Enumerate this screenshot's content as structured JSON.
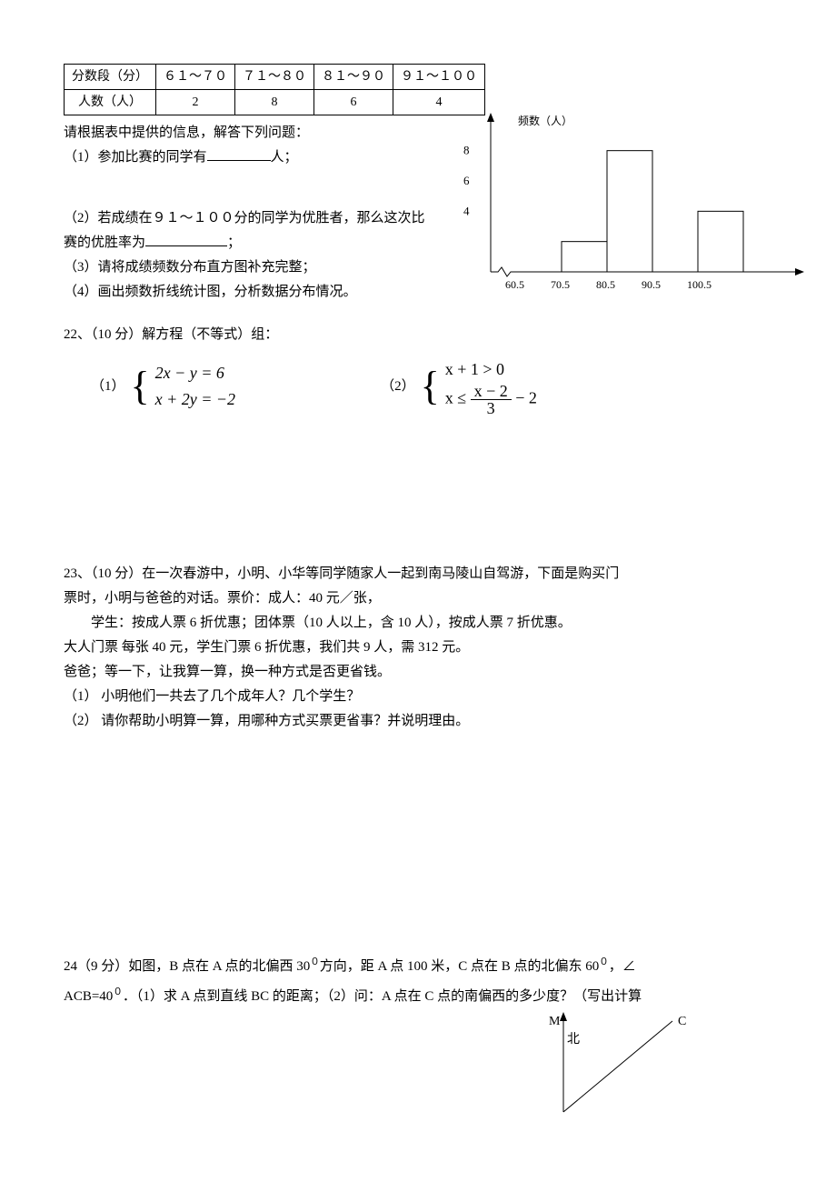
{
  "table": {
    "headers": [
      "分数段（分）",
      "６１～７０",
      "７１～８０",
      "８１～９０",
      "９１～１００"
    ],
    "row_label": "人数（人）",
    "values": [
      "2",
      "8",
      "6",
      "4"
    ]
  },
  "q21": {
    "intro": "请根据表中提供的信息，解答下列问题：",
    "p1_a": "（1）参加比赛的同学有",
    "p1_b": "人；",
    "p2_a": "（2）若成绩在９１～１００分的同学为优胜者，那么这次比赛的优胜率为",
    "p2_b": "；",
    "p3": "（3）请将成绩频数分布直方图补充完整；",
    "p4": "（4）画出频数折线统计图，分析数据分布情况。"
  },
  "chart": {
    "axis_label": "频数（人）",
    "y_ticks": [
      "8",
      "6",
      "4"
    ],
    "x_ticks": [
      "60.5",
      "70.5",
      "80.5",
      "90.5",
      "100.5"
    ],
    "bars": [
      {
        "x": 0,
        "h": 0
      },
      {
        "x": 1,
        "h": 2
      },
      {
        "x": 2,
        "h": 8
      },
      {
        "x": 3,
        "h": 0
      },
      {
        "x": 4,
        "h": 4
      }
    ],
    "y_max": 9,
    "bar_color": "#ffffff",
    "border_color": "#000000"
  },
  "q22": {
    "title": "22、（10 分）解方程（不等式）组：",
    "eq1_label": "（1）",
    "eq1_line1": "2x − y = 6",
    "eq1_line2": "x + 2y = −2",
    "eq2_label": "（2）",
    "eq2_line1": "x + 1 > 0",
    "eq2_line2a": "x ≤ ",
    "eq2_frac_num": "x − 2",
    "eq2_frac_den": "3",
    "eq2_line2b": " − 2"
  },
  "q23": {
    "l1": "23、（10 分）在一次春游中，小明、小华等同学随家人一起到南马陵山自驾游，下面是购买门",
    "l2": "票时，小明与爸爸的对话。票价：成人：40 元／张，",
    "l3": "学生：按成人票 6 折优惠；团体票（10 人以上，含 10 人），按成人票 7 折优惠。",
    "l4": "大人门票 每张 40 元，学生门票 6 折优惠，我们共 9 人，需 312 元。",
    "l5": "爸爸；等一下，让我算一算，换一种方式是否更省钱。",
    "l6": "（1）   小明他们一共去了几个成年人？几个学生？",
    "l7": "（2）   请你帮助小明算一算，用哪种方式买票更省事？并说明理由。"
  },
  "q24": {
    "l1a": "24（9 分）如图，B 点在 A 点的北偏西 30",
    "deg": "０",
    "l1b": "方向，距 A 点 100 米，C 点在 B 点的北偏东 60",
    "l1c": "，∠",
    "l2a": "ACB=40",
    "l2b": "．（1）求 A 点到直线 BC 的距离；（2）问：A 点在 C 点的南偏西的多少度？（写出计算",
    "geom_labels": {
      "M": "M",
      "north": "北",
      "C": "C"
    }
  }
}
